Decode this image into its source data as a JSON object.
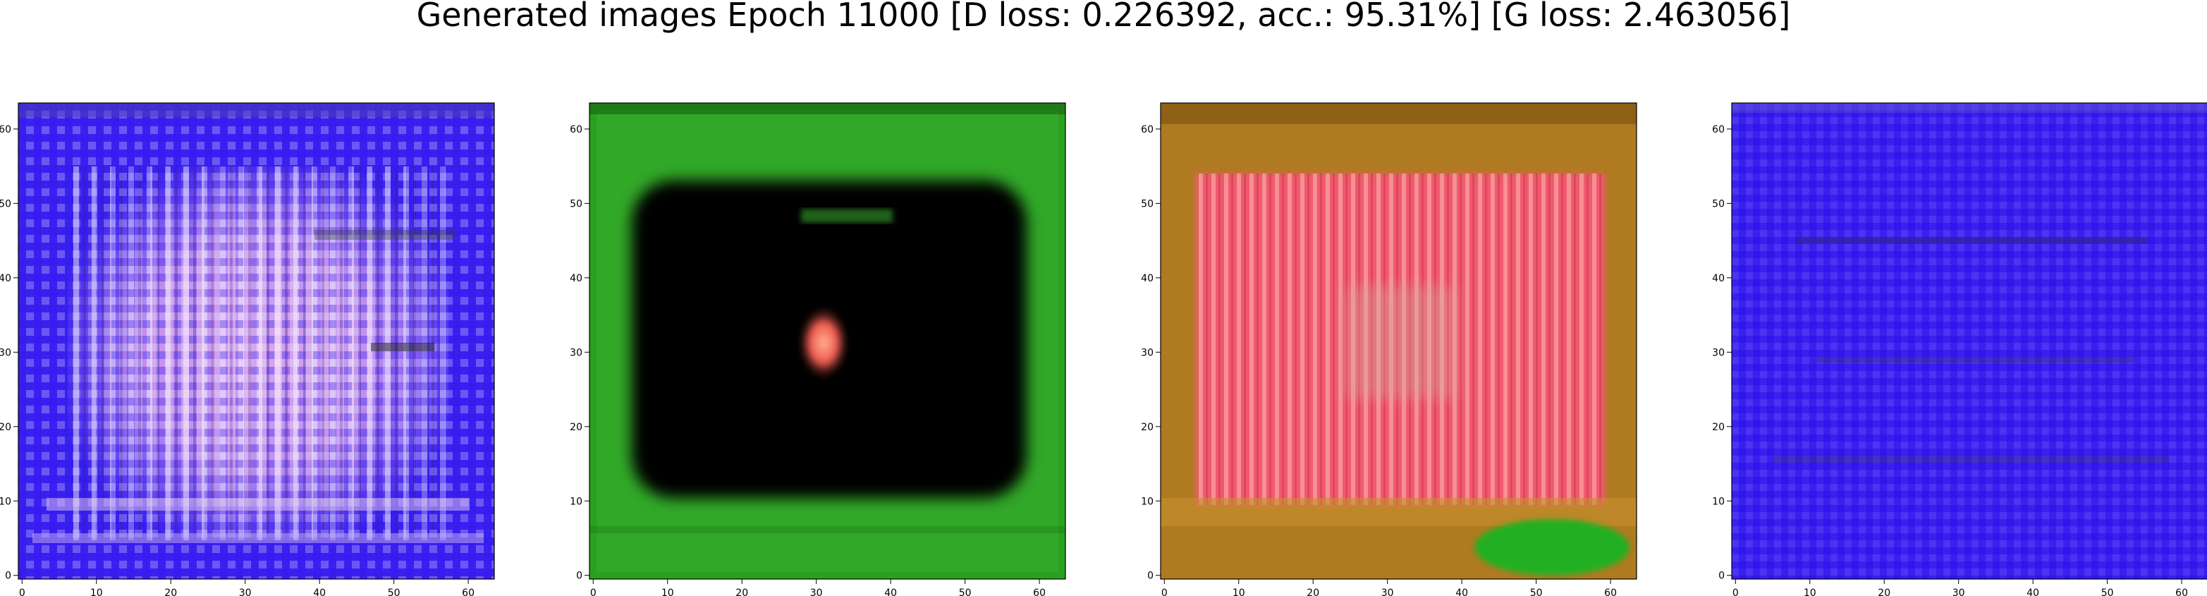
{
  "figure": {
    "title": "Generated images Epoch 11000 [D loss: 0.226392, acc.: 95.31%] [G loss: 2.463056]"
  },
  "chart_data": [
    {
      "type": "image",
      "description_colors": {
        "base": "#3a20f0",
        "accent": "#e0b0f0"
      },
      "xticks": [
        0,
        10,
        20,
        30,
        40,
        50,
        60
      ],
      "yticks": [
        0,
        10,
        20,
        30,
        40,
        50,
        60
      ],
      "xlim": [
        -0.5,
        63.5
      ],
      "ylim": [
        63.5,
        -0.5
      ]
    },
    {
      "type": "image",
      "description_colors": {
        "base": "#2aa020",
        "center": "#000000",
        "blob": "#f06050"
      },
      "xticks": [
        0,
        10,
        20,
        30,
        40,
        50,
        60
      ],
      "yticks": [
        0,
        10,
        20,
        30,
        40,
        50,
        60
      ],
      "xlim": [
        -0.5,
        63.5
      ],
      "ylim": [
        63.5,
        -0.5
      ]
    },
    {
      "type": "image",
      "description_colors": {
        "base": "#b07a20",
        "center": "#f05a70",
        "blob": "#20b020"
      },
      "xticks": [
        0,
        10,
        20,
        30,
        40,
        50,
        60
      ],
      "yticks": [
        0,
        10,
        20,
        30,
        40,
        50,
        60
      ],
      "xlim": [
        -0.5,
        63.5
      ],
      "ylim": [
        63.5,
        -0.5
      ]
    },
    {
      "type": "image",
      "description_colors": {
        "base": "#3a1ff0",
        "center": "#3b2ae0"
      },
      "xticks": [
        0,
        10,
        20,
        30,
        40,
        50,
        60
      ],
      "yticks": [
        0,
        10,
        20,
        30,
        40,
        50,
        60
      ],
      "xlim": [
        -0.5,
        63.5
      ],
      "ylim": [
        63.5,
        -0.5
      ]
    }
  ]
}
